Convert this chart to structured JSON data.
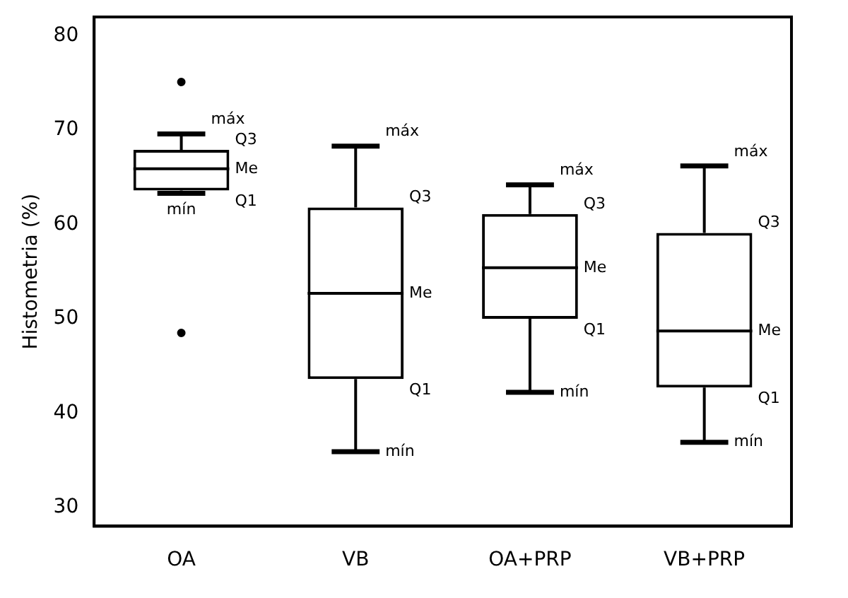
{
  "chart_data": {
    "type": "box",
    "ylabel": "Histometria (%)",
    "categories": [
      "OA",
      "VB",
      "OA+PRP",
      "VB+PRP"
    ],
    "boxes": [
      {
        "low": 63.3,
        "q1": 63.6,
        "median": 65.9,
        "q3": 67.9,
        "high": 69.6,
        "outliers": [
          75.1,
          48.5
        ]
      },
      {
        "low": 35.9,
        "q1": 43.6,
        "median": 52.7,
        "q3": 61.8,
        "high": 68.3
      },
      {
        "low": 42.2,
        "q1": 50.0,
        "median": 55.4,
        "q3": 61.1,
        "high": 64.2
      },
      {
        "low": 36.9,
        "q1": 42.7,
        "median": 48.7,
        "q3": 59.1,
        "high": 66.2
      }
    ],
    "ylim": [
      28,
      82
    ],
    "yticks": [
      30,
      40,
      50,
      60,
      70,
      80
    ],
    "grid": false,
    "legend": false,
    "annotations": [
      "máx",
      "Q3",
      "Me",
      "Q1",
      "mín",
      "máx",
      "Q3",
      "Me",
      "Q1",
      "mín",
      "máx",
      "Q3",
      "Me",
      "Q1",
      "mín",
      "máx",
      "Q3",
      "Me",
      "Q1",
      "mín"
    ]
  }
}
